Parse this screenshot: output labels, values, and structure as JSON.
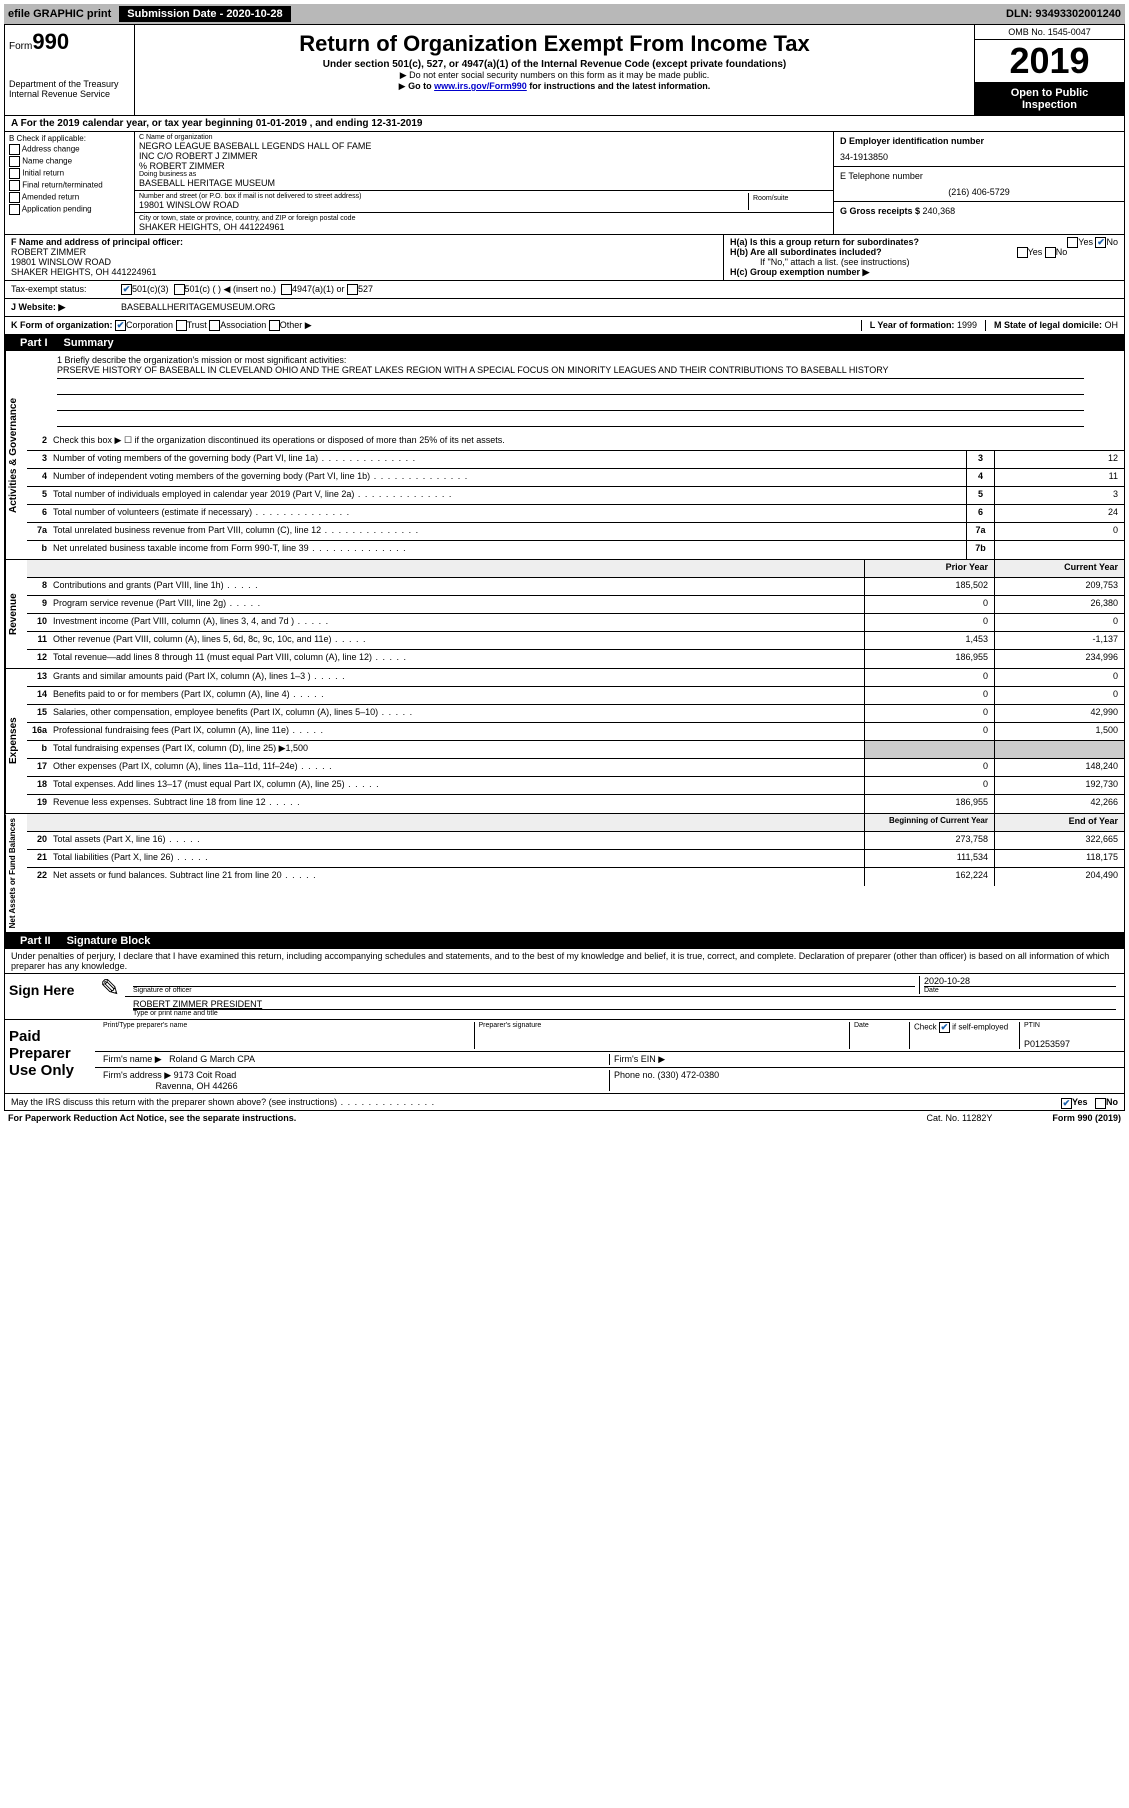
{
  "top_bar": {
    "efile": "efile GRAPHIC print",
    "submission_label": "Submission Date - 2020-10-28",
    "dln": "DLN: 93493302001240"
  },
  "header": {
    "form_prefix": "Form",
    "form_number": "990",
    "dept1": "Department of the Treasury",
    "dept2": "Internal Revenue Service",
    "title": "Return of Organization Exempt From Income Tax",
    "sub": "Under section 501(c), 527, or 4947(a)(1) of the Internal Revenue Code (except private foundations)",
    "note1": "Do not enter social security numbers on this form as it may be made public.",
    "note2_pre": "Go to ",
    "note2_link": "www.irs.gov/Form990",
    "note2_post": " for instructions and the latest information.",
    "omb": "OMB No. 1545-0047",
    "year": "2019",
    "inspect1": "Open to Public",
    "inspect2": "Inspection"
  },
  "row_a": "A  For the 2019 calendar year, or tax year beginning 01-01-2019       , and ending 12-31-2019",
  "col_b": {
    "header": "B Check if applicable:",
    "addr_change": "Address change",
    "name_change": "Name change",
    "initial": "Initial return",
    "final": "Final return/terminated",
    "amended": "Amended return",
    "app_pending": "Application pending"
  },
  "col_c": {
    "name_label": "C Name of organization",
    "name1": "NEGRO LEAGUE BASEBALL LEGENDS HALL OF FAME",
    "name2": "INC C/O ROBERT J ZIMMER",
    "name3": "% ROBERT ZIMMER",
    "dba_label": "Doing business as",
    "dba": "BASEBALL HERITAGE MUSEUM",
    "street_label": "Number and street (or P.O. box if mail is not delivered to street address)",
    "room_label": "Room/suite",
    "street": "19801 WINSLOW ROAD",
    "city_label": "City or town, state or province, country, and ZIP or foreign postal code",
    "city": "SHAKER HEIGHTS, OH  441224961"
  },
  "col_de": {
    "d_label": "D Employer identification number",
    "ein": "34-1913850",
    "e_label": "E Telephone number",
    "phone": "(216) 406-5729",
    "g_label": "G Gross receipts $ ",
    "g_val": "240,368"
  },
  "section_f": {
    "label": "F  Name and address of principal officer:",
    "name": "ROBERT ZIMMER",
    "street": "19801 WINSLOW ROAD",
    "city": "SHAKER HEIGHTS, OH  441224961"
  },
  "section_h": {
    "ha": "H(a)  Is this a group return for subordinates?",
    "hb": "H(b)  Are all subordinates included?",
    "hb_note": "If \"No,\" attach a list. (see instructions)",
    "hc": "H(c)  Group exemption number ▶",
    "yes": "Yes",
    "no": "No"
  },
  "tax_row": {
    "label": "Tax-exempt status:",
    "c3": "501(c)(3)",
    "c": "501(c) (   ) ◀ (insert no.)",
    "a1": "4947(a)(1) or",
    "527": "527"
  },
  "web_row": {
    "label": "J   Website: ▶",
    "url": "BASEBALLHERITAGEMUSEUM.ORG"
  },
  "k_row": {
    "label": "K Form of organization:",
    "corp": "Corporation",
    "trust": "Trust",
    "assoc": "Association",
    "other": "Other ▶",
    "l_label": "L Year of formation: ",
    "l_val": "1999",
    "m_label": "M State of legal domicile: ",
    "m_val": "OH"
  },
  "part1": {
    "tab": "Part I",
    "title": "Summary"
  },
  "mission": {
    "label": "1  Briefly describe the organization's mission or most significant activities:",
    "text": "PRSERVE HISTORY OF BASEBALL IN CLEVELAND OHIO AND THE GREAT LAKES REGION WITH A SPECIAL FOCUS ON MINORITY LEAGUES AND THEIR CONTRIBUTIONS TO BASEBALL HISTORY"
  },
  "gov_lines": [
    {
      "n": "2",
      "d": "Check this box ▶ ☐  if the organization discontinued its operations or disposed of more than 25% of its net assets."
    },
    {
      "n": "3",
      "d": "Number of voting members of the governing body (Part VI, line 1a)",
      "box": "3",
      "v": "12"
    },
    {
      "n": "4",
      "d": "Number of independent voting members of the governing body (Part VI, line 1b)",
      "box": "4",
      "v": "11"
    },
    {
      "n": "5",
      "d": "Total number of individuals employed in calendar year 2019 (Part V, line 2a)",
      "box": "5",
      "v": "3"
    },
    {
      "n": "6",
      "d": "Total number of volunteers (estimate if necessary)",
      "box": "6",
      "v": "24"
    },
    {
      "n": "7a",
      "d": "Total unrelated business revenue from Part VIII, column (C), line 12",
      "box": "7a",
      "v": "0"
    },
    {
      "n": "b",
      "d": "Net unrelated business taxable income from Form 990-T, line 39",
      "box": "7b",
      "v": ""
    }
  ],
  "col_hdr": {
    "py": "Prior Year",
    "cy": "Current Year"
  },
  "rev_lines": [
    {
      "n": "8",
      "d": "Contributions and grants (Part VIII, line 1h)",
      "py": "185,502",
      "cy": "209,753"
    },
    {
      "n": "9",
      "d": "Program service revenue (Part VIII, line 2g)",
      "py": "0",
      "cy": "26,380"
    },
    {
      "n": "10",
      "d": "Investment income (Part VIII, column (A), lines 3, 4, and 7d )",
      "py": "0",
      "cy": "0"
    },
    {
      "n": "11",
      "d": "Other revenue (Part VIII, column (A), lines 5, 6d, 8c, 9c, 10c, and 11e)",
      "py": "1,453",
      "cy": "-1,137"
    },
    {
      "n": "12",
      "d": "Total revenue—add lines 8 through 11 (must equal Part VIII, column (A), line 12)",
      "py": "186,955",
      "cy": "234,996"
    }
  ],
  "exp_lines": [
    {
      "n": "13",
      "d": "Grants and similar amounts paid (Part IX, column (A), lines 1–3 )",
      "py": "0",
      "cy": "0"
    },
    {
      "n": "14",
      "d": "Benefits paid to or for members (Part IX, column (A), line 4)",
      "py": "0",
      "cy": "0"
    },
    {
      "n": "15",
      "d": "Salaries, other compensation, employee benefits (Part IX, column (A), lines 5–10)",
      "py": "0",
      "cy": "42,990"
    },
    {
      "n": "16a",
      "d": "Professional fundraising fees (Part IX, column (A), line 11e)",
      "py": "0",
      "cy": "1,500"
    },
    {
      "n": "b",
      "d": "Total fundraising expenses (Part IX, column (D), line 25) ▶1,500",
      "shade": true
    },
    {
      "n": "17",
      "d": "Other expenses (Part IX, column (A), lines 11a–11d, 11f–24e)",
      "py": "0",
      "cy": "148,240"
    },
    {
      "n": "18",
      "d": "Total expenses. Add lines 13–17 (must equal Part IX, column (A), line 25)",
      "py": "0",
      "cy": "192,730"
    },
    {
      "n": "19",
      "d": "Revenue less expenses. Subtract line 18 from line 12",
      "py": "186,955",
      "cy": "42,266"
    }
  ],
  "net_hdr": {
    "py": "Beginning of Current Year",
    "cy": "End of Year"
  },
  "net_lines": [
    {
      "n": "20",
      "d": "Total assets (Part X, line 16)",
      "py": "273,758",
      "cy": "322,665"
    },
    {
      "n": "21",
      "d": "Total liabilities (Part X, line 26)",
      "py": "111,534",
      "cy": "118,175"
    },
    {
      "n": "22",
      "d": "Net assets or fund balances. Subtract line 21 from line 20",
      "py": "162,224",
      "cy": "204,490"
    }
  ],
  "part2": {
    "tab": "Part II",
    "title": "Signature Block"
  },
  "penalties": "Under penalties of perjury, I declare that I have examined this return, including accompanying schedules and statements, and to the best of my knowledge and belief, it is true, correct, and complete. Declaration of preparer (other than officer) is based on all information of which preparer has any knowledge.",
  "sign_here": {
    "label": "Sign Here",
    "sig_label": "Signature of officer",
    "date": "2020-10-28",
    "date_label": "Date",
    "name": "ROBERT ZIMMER  PRESIDENT",
    "name_label": "Type or print name and title"
  },
  "paid_prep": {
    "label": "Paid Preparer Use Only",
    "col1": "Print/Type preparer's name",
    "col2": "Preparer's signature",
    "col3": "Date",
    "check_label": "Check",
    "self_emp": "if self-employed",
    "ptin_label": "PTIN",
    "ptin": "P01253597",
    "firm_name_label": "Firm's name     ▶",
    "firm_name": "Roland G March CPA",
    "firm_ein_label": "Firm's EIN ▶",
    "firm_addr_label": "Firm's address ▶",
    "firm_addr1": "9173 Coit Road",
    "firm_addr2": "Ravenna, OH  44266",
    "phone_label": "Phone no. ",
    "phone": "(330) 472-0380"
  },
  "discuss": "May the IRS discuss this return with the preparer shown above? (see instructions)",
  "footer": {
    "left": "For Paperwork Reduction Act Notice, see the separate instructions.",
    "mid": "Cat. No. 11282Y",
    "right": "Form 990 (2019)"
  }
}
